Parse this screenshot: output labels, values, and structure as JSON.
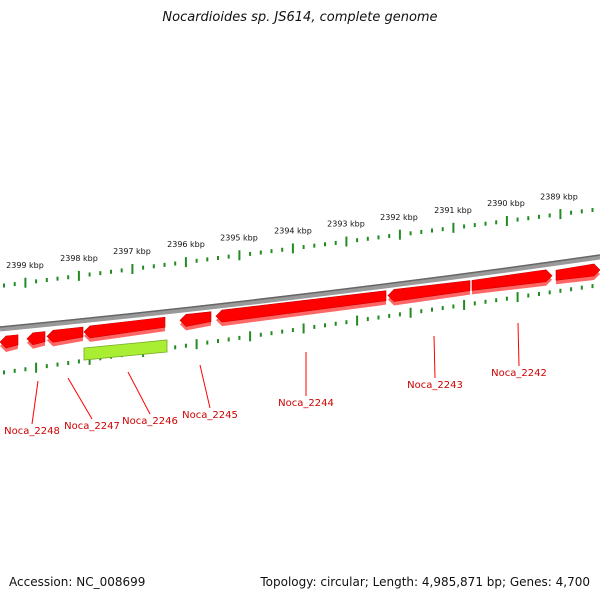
{
  "title": "Nocardioides sp. JS614, complete genome",
  "footer": {
    "accession": "Accession: NC_008699",
    "topology": "Topology: circular; Length: 4,985,871 bp; Genes: 4,700"
  },
  "scale_labels": [
    "2389 kbp",
    "2390 kbp",
    "2391 kbp",
    "2392 kbp",
    "2393 kbp",
    "2394 kbp",
    "2395 kbp",
    "2396 kbp",
    "2397 kbp",
    "2398 kbp",
    "2399 kbp"
  ],
  "genes": [
    {
      "name": "Noca_2242",
      "strand": "forward",
      "color": "#ff0000"
    },
    {
      "name": "Noca_2243",
      "strand": "forward",
      "color": "#ff0000"
    },
    {
      "name": "Noca_2244",
      "strand": "reverse",
      "color": "#ff0000"
    },
    {
      "name": "Noca_2245",
      "strand": "reverse",
      "color": "#ff0000"
    },
    {
      "name": "Noca_2246",
      "strand": "reverse",
      "color": "#ff0000"
    },
    {
      "name": "Noca_2247",
      "strand": "reverse",
      "color": "#ff0000"
    },
    {
      "name": "Noca_2248",
      "strand": "reverse",
      "color": "#ff0000"
    }
  ],
  "features": [
    {
      "type": "non-coding",
      "color": "#aaee33"
    }
  ],
  "colors": {
    "gene": "#ff0000",
    "gene_shadow": "#ff6666",
    "backbone": "#888888",
    "ticks": "#228b22",
    "gene_label": "#cc0000",
    "noncoding": "#aaee33"
  }
}
